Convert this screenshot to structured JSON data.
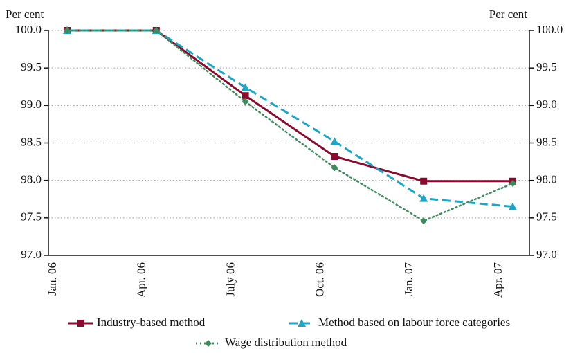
{
  "chart_data": {
    "type": "line",
    "ylabel": "Per cent",
    "y2label": "Per cent",
    "categories": [
      "Jan. 06",
      "Apr. 06",
      "July 06",
      "Oct. 06",
      "Jan. 07",
      "Apr. 07"
    ],
    "series": [
      {
        "name": "Industry-based method",
        "color": "#8b0a2e",
        "dash": "solid",
        "marker": "square",
        "values": [
          100,
          100,
          99.13,
          98.32,
          97.99,
          97.99
        ]
      },
      {
        "name": "Method based on labour force categories",
        "color": "#19a6c9",
        "dash": "dashed",
        "marker": "triangle",
        "values": [
          100,
          100,
          99.24,
          98.52,
          97.76,
          97.65
        ]
      },
      {
        "name": "Wage distribution method",
        "color": "#3d8c5c",
        "dash": "dotted",
        "marker": "diamond",
        "values": [
          100,
          100,
          99.05,
          98.17,
          97.46,
          97.96
        ]
      }
    ],
    "ylim": [
      97,
      100
    ],
    "yticks": [
      {
        "value": 97,
        "label": "97.0"
      },
      97.5,
      {
        "value": 98,
        "label": "98.0"
      },
      98.5,
      {
        "value": 99,
        "label": "99.0"
      },
      99.5,
      {
        "value": 100,
        "label": "100.0"
      }
    ],
    "y2lim": [
      97,
      100
    ],
    "y2ticks": [
      {
        "value": 97,
        "label": "97.0"
      },
      97.5,
      {
        "value": 98,
        "label": "98.0"
      },
      98.5,
      {
        "value": 99,
        "label": "99.0"
      },
      99.5,
      {
        "value": 100,
        "label": "100.0"
      }
    ],
    "grid": true
  }
}
